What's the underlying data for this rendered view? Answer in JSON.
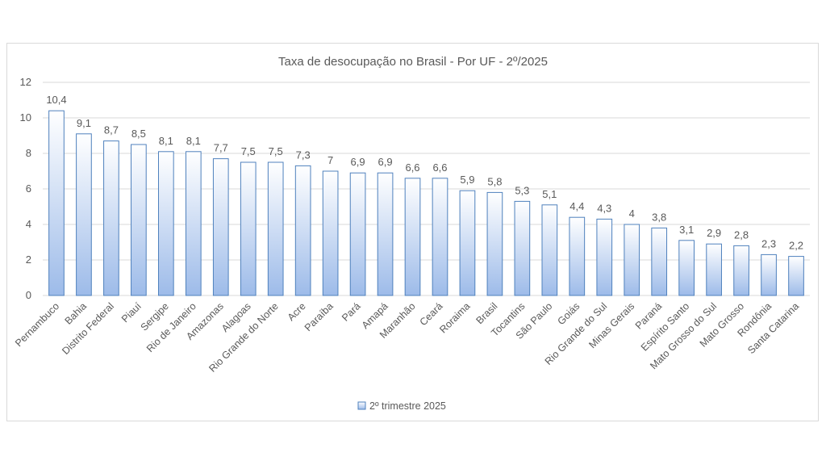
{
  "chart_data": {
    "type": "bar",
    "title": "Taxa de desocupação no Brasil - Por UF - 2º/2025",
    "xlabel": "",
    "ylabel": "",
    "ylim": [
      0,
      12
    ],
    "yticks": [
      0,
      2,
      4,
      6,
      8,
      10,
      12
    ],
    "grid": true,
    "legend_position": "bottom",
    "bar_color": "#4f81bd",
    "categories": [
      "Pernambuco",
      "Bahia",
      "Distrito Federal",
      "Piauí",
      "Sergipe",
      "Rio de Janeiro",
      "Amazonas",
      "Alagoas",
      "Rio Grande do Norte",
      "Acre",
      "Paraíba",
      "Pará",
      "Amapá",
      "Maranhão",
      "Ceará",
      "Roraima",
      "Brasil",
      "Tocantins",
      "São Paulo",
      "Goiás",
      "Rio Grande do Sul",
      "Minas Gerais",
      "Paraná",
      "Espírito Santo",
      "Mato Grosso do Sul",
      "Mato Grosso",
      "Rondônia",
      "Santa Catarina"
    ],
    "series": [
      {
        "name": "2º trimestre 2025",
        "values": [
          10.4,
          9.1,
          8.7,
          8.5,
          8.1,
          8.1,
          7.7,
          7.5,
          7.5,
          7.3,
          7,
          6.9,
          6.9,
          6.6,
          6.6,
          5.9,
          5.8,
          5.3,
          5.1,
          4.4,
          4.3,
          4,
          3.8,
          3.1,
          2.9,
          2.8,
          2.3,
          2.2
        ],
        "labels": [
          "10,4",
          "9,1",
          "8,7",
          "8,5",
          "8,1",
          "8,1",
          "7,7",
          "7,5",
          "7,5",
          "7,3",
          "7",
          "6,9",
          "6,9",
          "6,6",
          "6,6",
          "5,9",
          "5,8",
          "5,3",
          "5,1",
          "4,4",
          "4,3",
          "4",
          "3,8",
          "3,1",
          "2,9",
          "2,8",
          "2,3",
          "2,2"
        ]
      }
    ]
  }
}
